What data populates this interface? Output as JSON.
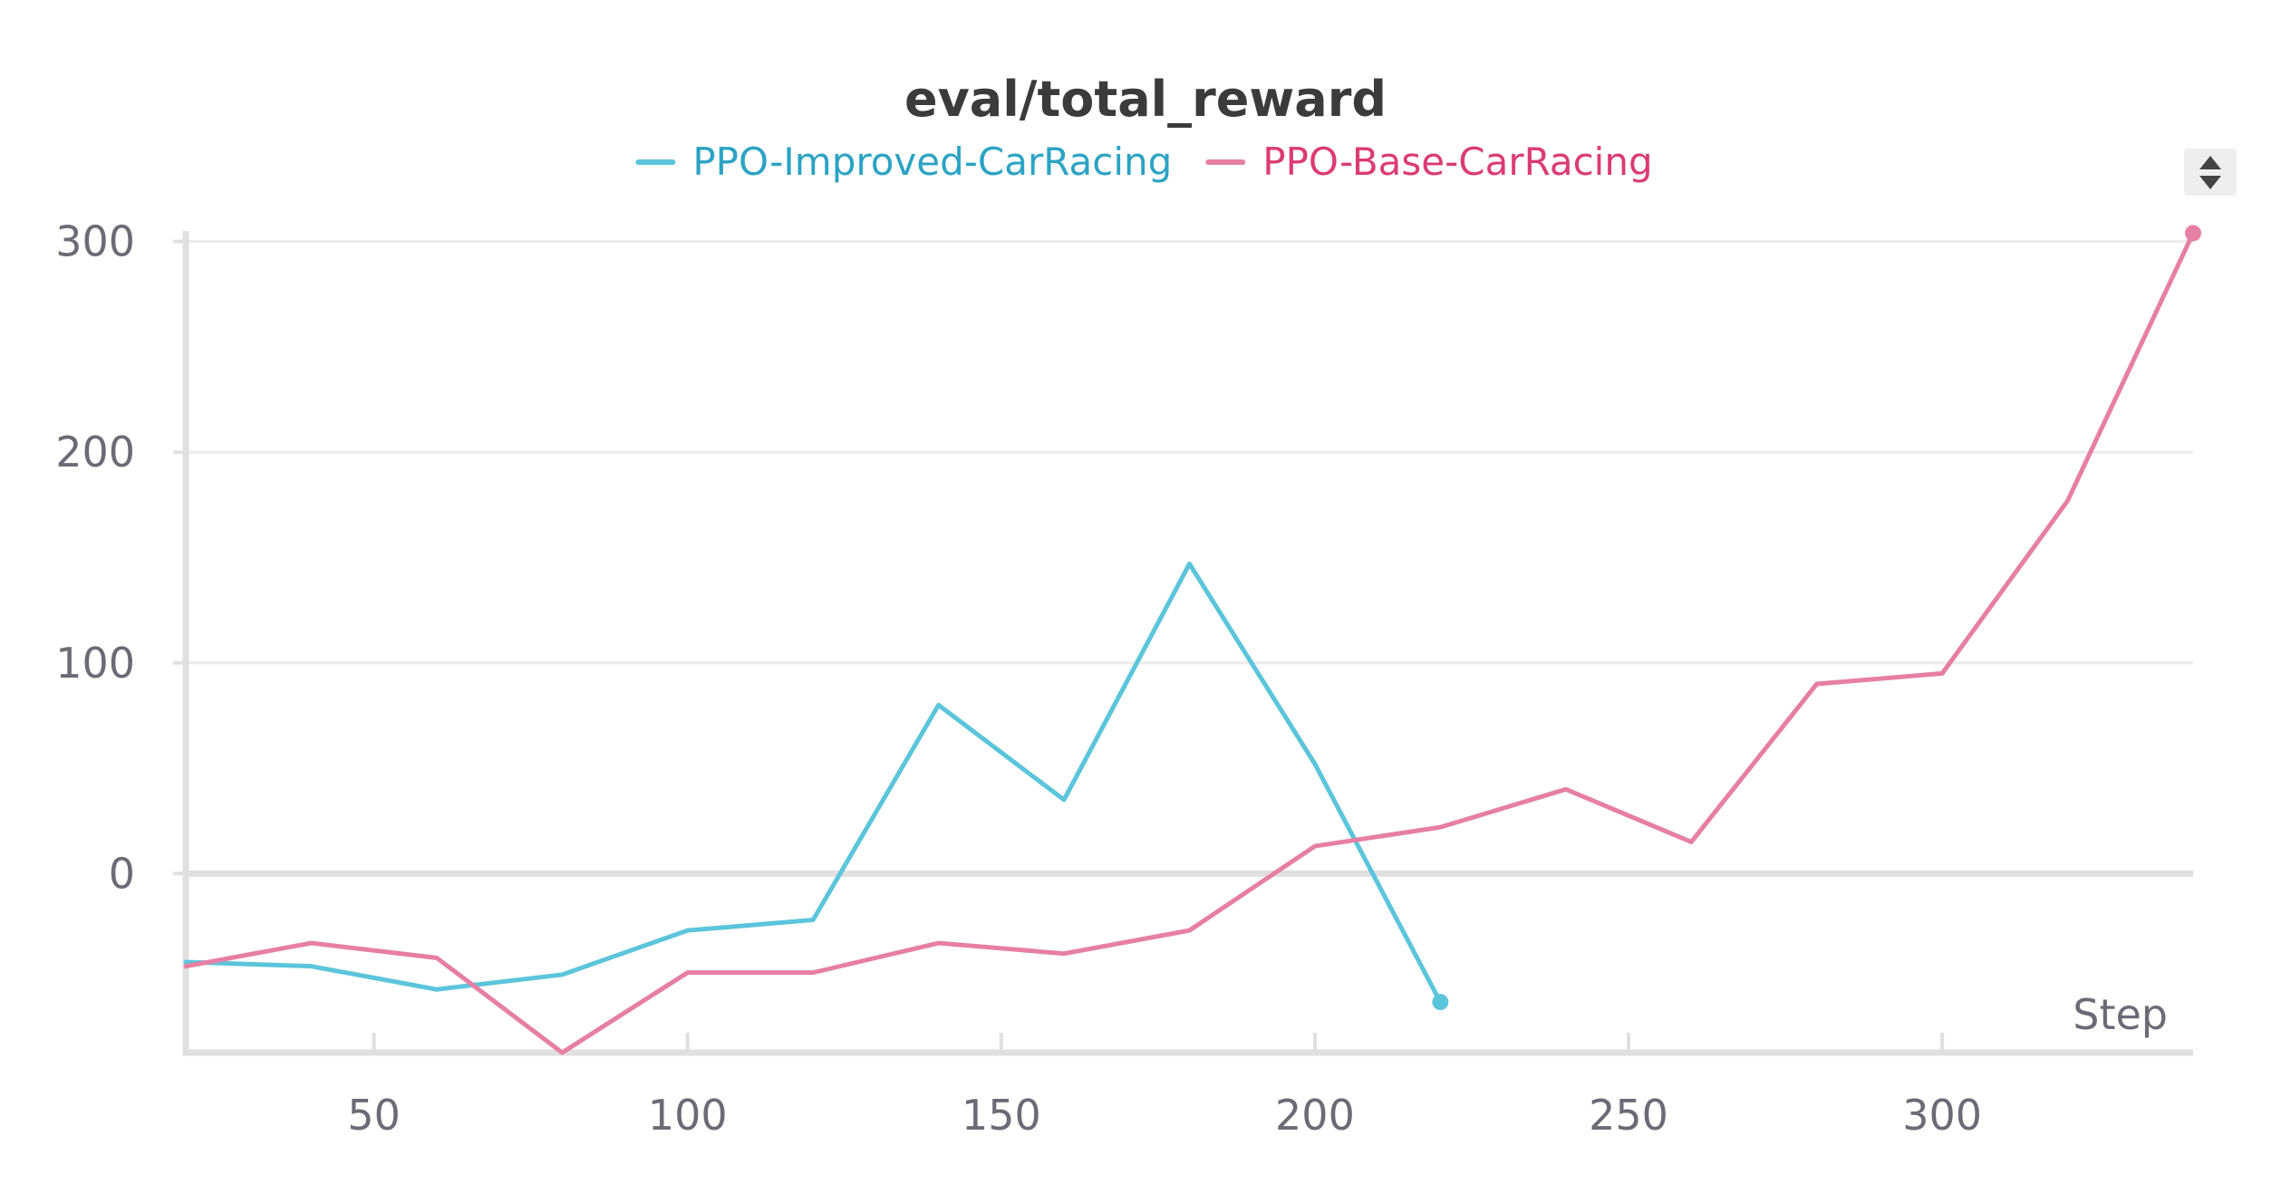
{
  "chart_data": {
    "type": "line",
    "title": "eval/total_reward",
    "xlabel": "Step",
    "ylabel": "",
    "xlim": [
      20,
      340
    ],
    "ylim": [
      -85,
      305
    ],
    "x_ticks": [
      50,
      100,
      150,
      200,
      250,
      300
    ],
    "y_ticks": [
      0,
      100,
      200,
      300
    ],
    "grid": true,
    "legend_position": "top-center",
    "series": [
      {
        "name": "PPO-Improved-CarRacing",
        "color": "#5bc5db",
        "text_color": "#2ba3c4",
        "x": [
          20,
          40,
          60,
          80,
          100,
          120,
          140,
          160,
          180,
          200,
          220
        ],
        "y": [
          -42,
          -44,
          -55,
          -48,
          -27,
          -22,
          80,
          35,
          147,
          52,
          -61
        ]
      },
      {
        "name": "PPO-Base-CarRacing",
        "color": "#e67fa3",
        "text_color": "#db3b73",
        "x": [
          20,
          40,
          60,
          80,
          100,
          120,
          140,
          160,
          180,
          200,
          220,
          240,
          260,
          280,
          300,
          320,
          340
        ],
        "y": [
          -44,
          -33,
          -40,
          -85,
          -47,
          -47,
          -33,
          -38,
          -27,
          13,
          22,
          40,
          15,
          90,
          95,
          177,
          304
        ]
      }
    ]
  },
  "controls": {
    "sort_icon": "up-down-arrows-icon"
  }
}
